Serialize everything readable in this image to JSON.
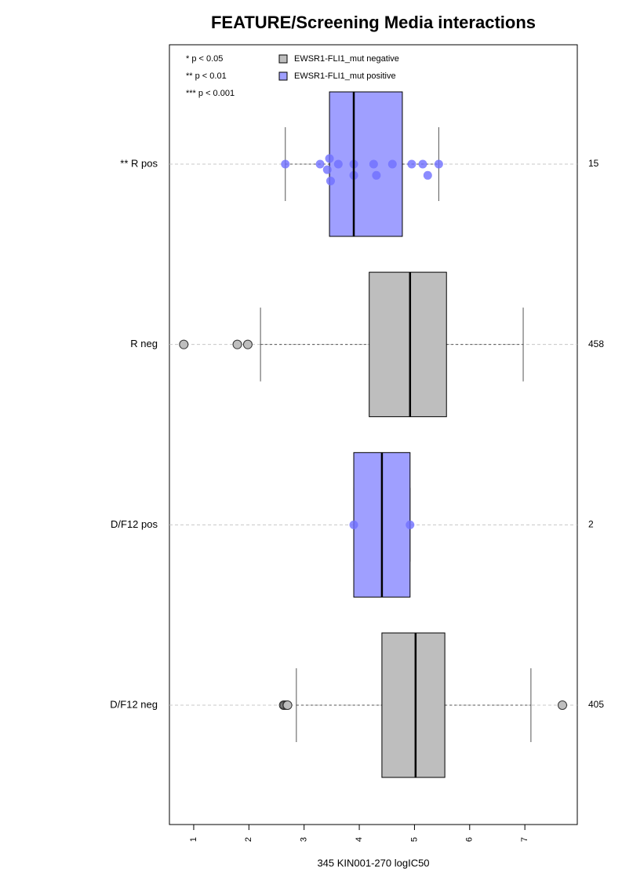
{
  "chart_data": {
    "type": "boxplot",
    "title": "FEATURE/Screening Media interactions",
    "x_label": "345 KIN001-270 logIC50",
    "xlim": [
      0.56,
      7.95
    ],
    "xticks": [
      1,
      2,
      3,
      4,
      5,
      6,
      7
    ],
    "categories": [
      "** R pos",
      "R neg",
      "D/F12 pos",
      "D/F12 neg"
    ],
    "counts": [
      15,
      458,
      2,
      405
    ],
    "notes": [
      "* p < 0.05",
      "** p < 0.01",
      "*** p < 0.001"
    ],
    "series": [
      {
        "name": "EWSR1-FLI1_mut negative",
        "color": "#bebebe",
        "point_color": "#b0b0b0",
        "values": [
          null,
          {
            "whislo": 2.21,
            "q1": 4.18,
            "med": 4.92,
            "q3": 5.58,
            "whishi": 6.97,
            "outliers": [
              0.82,
              1.79,
              1.98
            ]
          },
          null,
          {
            "whislo": 2.86,
            "q1": 4.41,
            "med": 5.02,
            "q3": 5.55,
            "whishi": 7.11,
            "outliers": [
              2.63,
              2.65,
              2.68,
              2.7,
              7.68
            ]
          }
        ]
      },
      {
        "name": "EWSR1-FLI1_mut positive",
        "color": "#9f9fff",
        "point_color": "#6f6fff",
        "values": [
          {
            "whislo": 2.66,
            "q1": 3.46,
            "med": 3.9,
            "q3": 4.78,
            "whishi": 5.44,
            "points": [
              2.66,
              3.29,
              3.42,
              3.46,
              3.48,
              3.62,
              3.9,
              3.9,
              4.26,
              4.31,
              4.6,
              4.95,
              5.15,
              5.24,
              5.44
            ]
          },
          null,
          {
            "whislo": 3.9,
            "q1": 3.9,
            "med": 4.41,
            "q3": 4.92,
            "whishi": 4.92,
            "points": [
              3.9,
              4.92
            ]
          },
          null
        ]
      }
    ]
  }
}
